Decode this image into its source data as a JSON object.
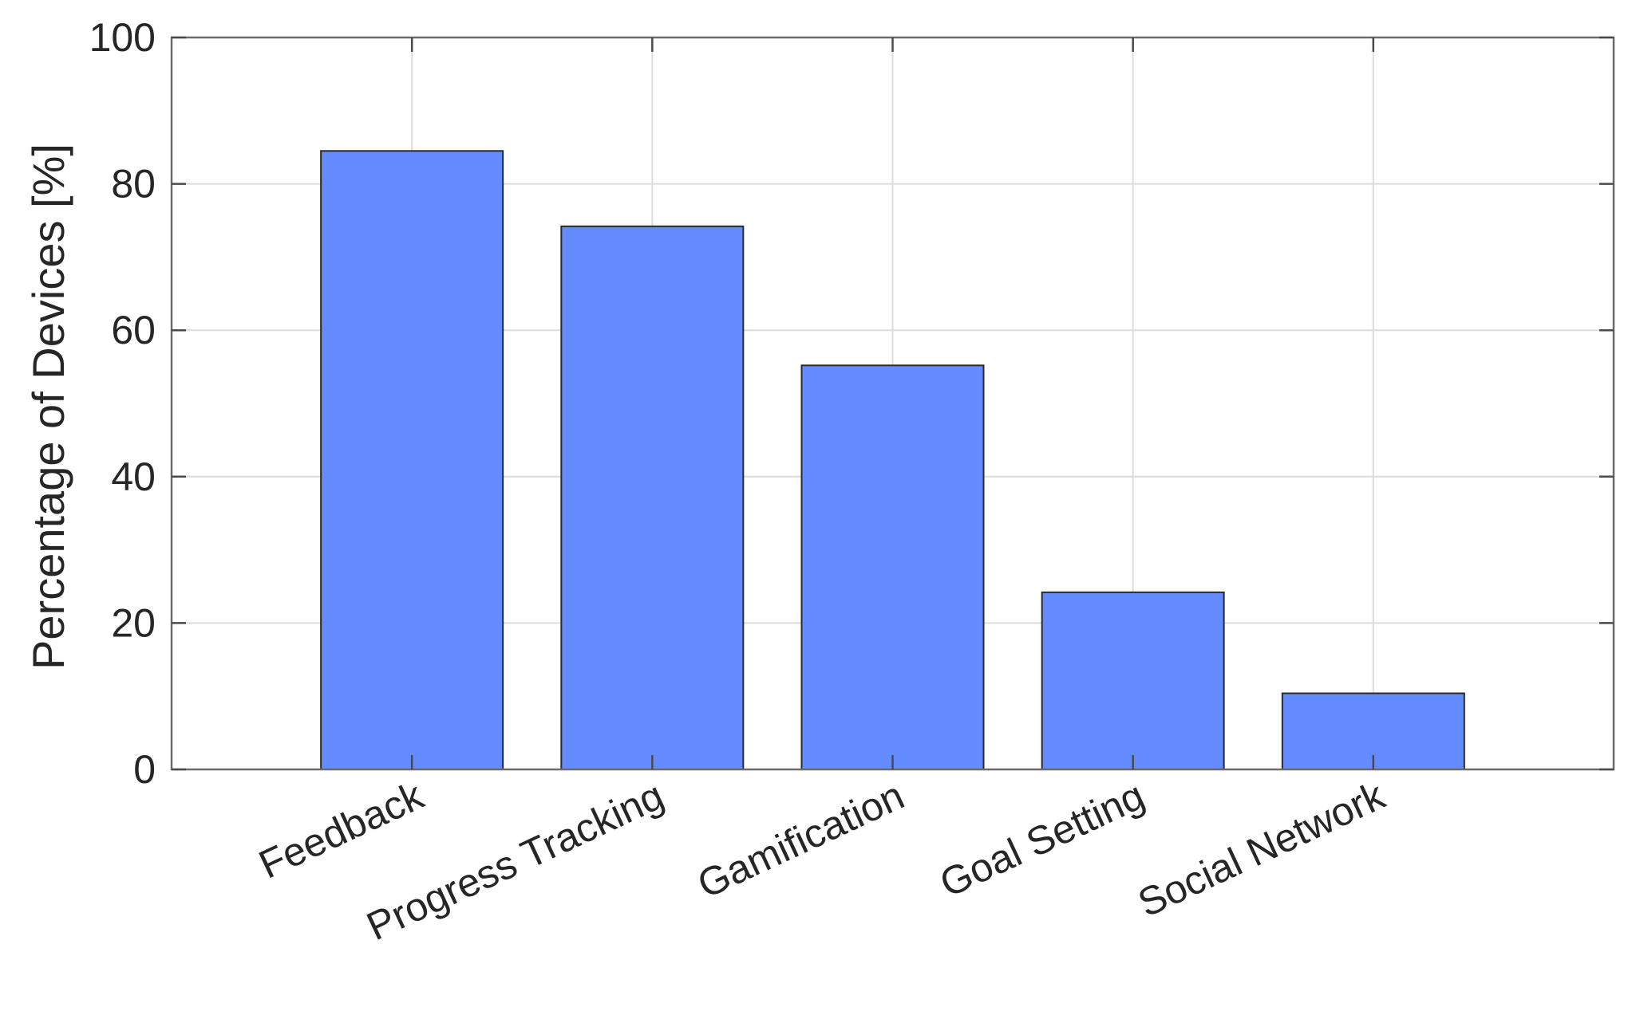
{
  "chart_data": {
    "type": "bar",
    "categories": [
      "Feedback",
      "Progress Tracking",
      "Gamification",
      "Goal Setting",
      "Social Network"
    ],
    "values": [
      84.5,
      74.2,
      55.2,
      24.2,
      10.4
    ],
    "title": "",
    "xlabel": "",
    "ylabel": "Percentage of Devices [%]",
    "ylim": [
      0,
      100
    ],
    "yticks": [
      0,
      20,
      40,
      60,
      80,
      100
    ],
    "grid": true,
    "bar_color": "#648cff"
  }
}
